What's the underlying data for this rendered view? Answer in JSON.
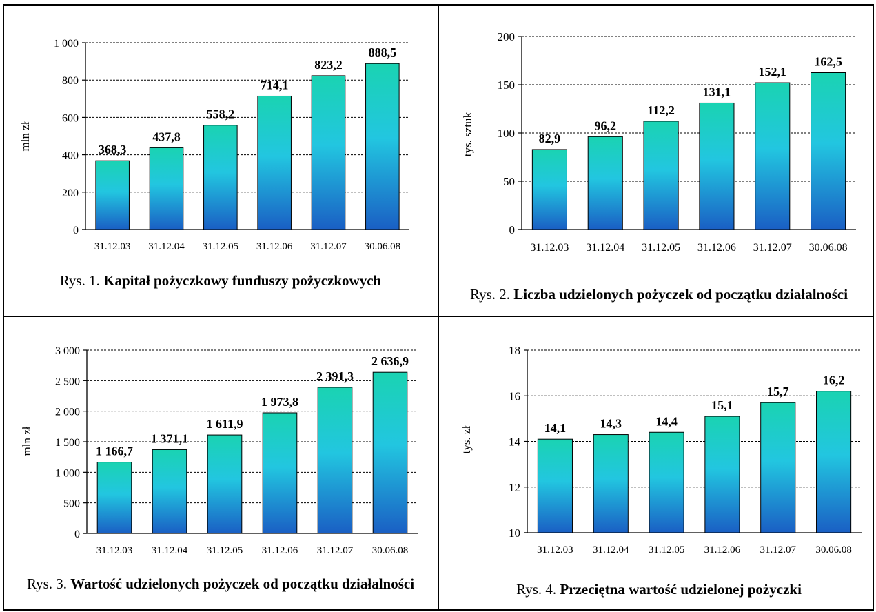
{
  "chart_data": [
    {
      "type": "bar",
      "categories": [
        "31.12.03",
        "31.12.04",
        "31.12.05",
        "31.12.06",
        "31.12.07",
        "30.06.08"
      ],
      "values": [
        368.3,
        437.8,
        558.2,
        714.1,
        823.2,
        888.5
      ],
      "data_labels": [
        "368,3",
        "437,8",
        "558,2",
        "714,1",
        "823,2",
        "888,5"
      ],
      "yticks": [
        "0",
        "200",
        "400",
        "600",
        "800",
        "1 000"
      ],
      "ylim": [
        0,
        1000
      ],
      "ylabel": "mln zł",
      "grid": true,
      "caption_prefix": "Rys. 1. ",
      "caption_title": "Kapitał pożyczkowy funduszy pożyczkowych"
    },
    {
      "type": "bar",
      "categories": [
        "31.12.03",
        "31.12.04",
        "31.12.05",
        "31.12.06",
        "31.12.07",
        "30.06.08"
      ],
      "values": [
        82.9,
        96.2,
        112.2,
        131.1,
        152.1,
        162.5
      ],
      "data_labels": [
        "82,9",
        "96,2",
        "112,2",
        "131,1",
        "152,1",
        "162,5"
      ],
      "yticks": [
        "0",
        "50",
        "100",
        "150",
        "200"
      ],
      "ylim": [
        0,
        200
      ],
      "ylabel": "tys. sztuk",
      "grid": true,
      "caption_prefix": "Rys. 2. ",
      "caption_title": "Liczba udzielonych pożyczek od początku działalności"
    },
    {
      "type": "bar",
      "categories": [
        "31.12.03",
        "31.12.04",
        "31.12.05",
        "31.12.06",
        "31.12.07",
        "30.06.08"
      ],
      "values": [
        1166.7,
        1371.1,
        1611.9,
        1973.8,
        2391.3,
        2636.9
      ],
      "data_labels": [
        "1 166,7",
        "1 371,1",
        "1 611,9",
        "1 973,8",
        "2 391,3",
        "2 636,9"
      ],
      "yticks": [
        "0",
        "500",
        "1 000",
        "1 500",
        "2 000",
        "2 500",
        "3 000"
      ],
      "ylim": [
        0,
        3000
      ],
      "ylabel": "mln zł",
      "grid": true,
      "caption_prefix": "Rys. 3. ",
      "caption_title": "Wartość udzielonych pożyczek od początku działalności"
    },
    {
      "type": "bar",
      "categories": [
        "31.12.03",
        "31.12.04",
        "31.12.05",
        "31.12.06",
        "31.12.07",
        "30.06.08"
      ],
      "values": [
        14.1,
        14.3,
        14.4,
        15.1,
        15.7,
        16.2
      ],
      "data_labels": [
        "14,1",
        "14,3",
        "14,4",
        "15,1",
        "15,7",
        "16,2"
      ],
      "yticks": [
        "10",
        "12",
        "14",
        "16",
        "18"
      ],
      "ylim": [
        10,
        18
      ],
      "ylabel": "tys. zł",
      "grid": true,
      "caption_prefix": "Rys. 4. ",
      "caption_title": "Przeciętna wartość udzielonej pożyczki"
    }
  ],
  "colors": {
    "bar_top": "#1ad3b2",
    "bar_mid": "#22c6e0",
    "bar_bottom": "#1a5fc4"
  }
}
